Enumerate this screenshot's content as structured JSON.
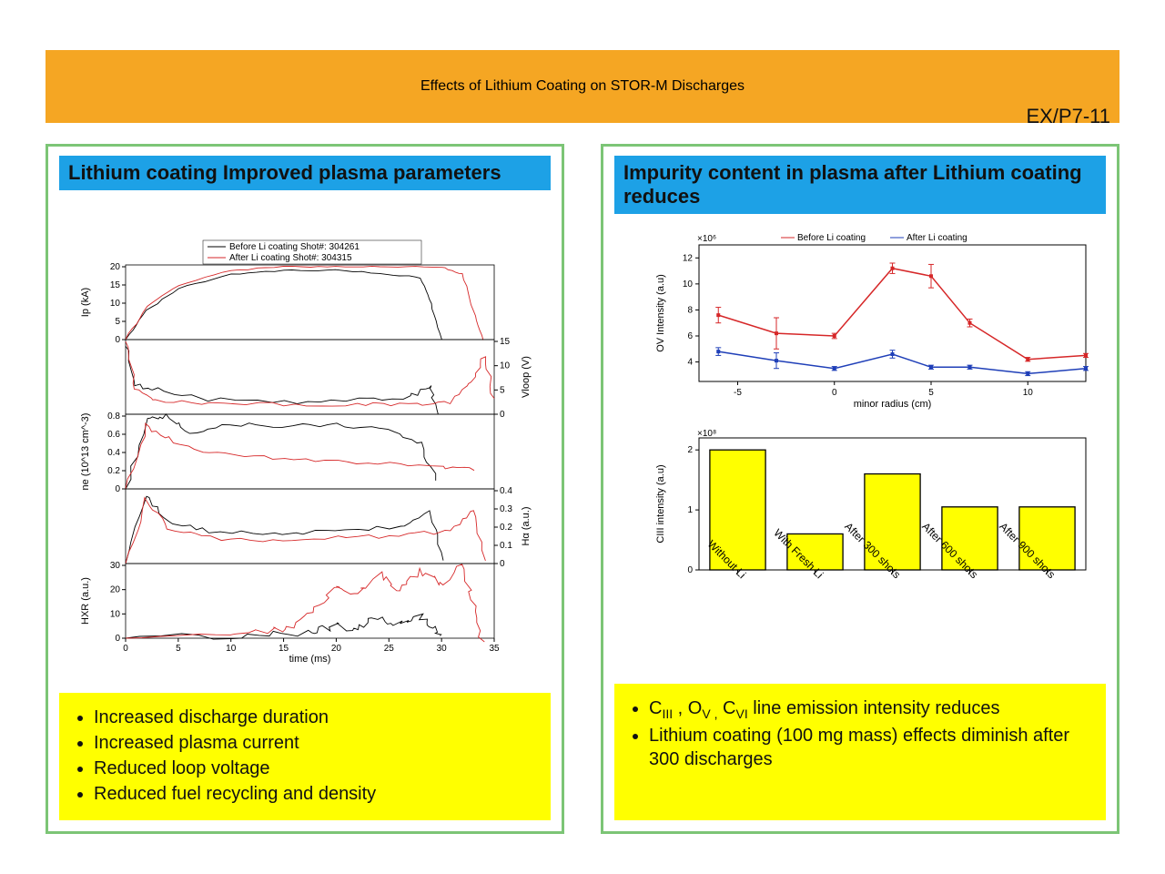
{
  "title": "Effects of Lithium Coating on STOR-M Discharges",
  "code": "EX/P7-11",
  "colors": {
    "title_bg": "#f5a623",
    "panel_border": "#7cc576",
    "subheader_bg": "#1da1e6",
    "highlight_bg": "#ffff00",
    "before_line": "#000000",
    "after_line": "#d62728",
    "ov_before": "#d62728",
    "ov_after": "#1f3fb8",
    "bar_fill": "#ffff00",
    "bar_edge": "#000000"
  },
  "left_panel": {
    "header": "Lithium coating Improved plasma parameters",
    "legend_before": "Before Li coating Shot#: 304261",
    "legend_after": "After Li coating Shot#: 304315",
    "x_axis_label": "time (ms)",
    "x_ticks": [
      0,
      5,
      10,
      15,
      20,
      25,
      30,
      35
    ],
    "subplots": [
      {
        "ylabel": "Ip (kA)",
        "yticks": [
          0,
          5,
          10,
          15,
          20
        ],
        "before": [
          [
            0,
            0
          ],
          [
            2,
            8
          ],
          [
            5,
            14
          ],
          [
            10,
            18
          ],
          [
            15,
            19
          ],
          [
            20,
            19
          ],
          [
            25,
            18
          ],
          [
            28,
            17
          ],
          [
            29,
            10
          ],
          [
            30,
            0
          ]
        ],
        "after": [
          [
            0,
            0
          ],
          [
            2,
            9
          ],
          [
            5,
            15
          ],
          [
            10,
            19
          ],
          [
            15,
            20
          ],
          [
            20,
            20
          ],
          [
            25,
            20
          ],
          [
            30,
            20
          ],
          [
            32,
            18
          ],
          [
            33,
            8
          ],
          [
            34,
            0
          ]
        ]
      },
      {
        "ylabel": "Vloop (V)",
        "side": "right",
        "yticks": [
          0,
          5,
          10,
          15
        ],
        "before": [
          [
            0,
            14
          ],
          [
            1,
            6
          ],
          [
            3,
            5
          ],
          [
            8,
            3
          ],
          [
            15,
            2.5
          ],
          [
            22,
            3
          ],
          [
            27,
            3.5
          ],
          [
            29,
            6
          ],
          [
            29.5,
            0
          ]
        ],
        "after": [
          [
            0,
            15
          ],
          [
            1,
            5
          ],
          [
            3,
            3
          ],
          [
            8,
            2
          ],
          [
            15,
            2
          ],
          [
            22,
            2
          ],
          [
            27,
            2
          ],
          [
            31,
            2.5
          ],
          [
            33,
            7
          ],
          [
            34,
            12
          ],
          [
            35,
            3
          ]
        ]
      },
      {
        "ylabel": "ne (10^13 cm^-3)",
        "yticks": [
          0,
          0.2,
          0.4,
          0.6,
          0.8
        ],
        "before": [
          [
            0,
            0
          ],
          [
            2,
            0.75
          ],
          [
            4,
            0.8
          ],
          [
            6,
            0.6
          ],
          [
            10,
            0.7
          ],
          [
            15,
            0.7
          ],
          [
            20,
            0.7
          ],
          [
            25,
            0.65
          ],
          [
            28,
            0.5
          ],
          [
            29.5,
            0.1
          ]
        ],
        "after": [
          [
            0,
            0
          ],
          [
            2,
            0.7
          ],
          [
            4,
            0.55
          ],
          [
            8,
            0.4
          ],
          [
            12,
            0.35
          ],
          [
            18,
            0.3
          ],
          [
            24,
            0.28
          ],
          [
            30,
            0.25
          ],
          [
            33,
            0.2
          ]
        ]
      },
      {
        "ylabel": "Hα (a.u.)",
        "side": "right",
        "yticks": [
          0,
          0.1,
          0.2,
          0.3,
          0.4
        ],
        "before": [
          [
            0,
            0
          ],
          [
            2,
            0.38
          ],
          [
            4,
            0.22
          ],
          [
            8,
            0.18
          ],
          [
            14,
            0.16
          ],
          [
            20,
            0.18
          ],
          [
            26,
            0.2
          ],
          [
            29,
            0.28
          ],
          [
            30,
            0.02
          ]
        ],
        "after": [
          [
            0,
            0
          ],
          [
            2,
            0.35
          ],
          [
            4,
            0.18
          ],
          [
            8,
            0.14
          ],
          [
            14,
            0.13
          ],
          [
            20,
            0.14
          ],
          [
            26,
            0.15
          ],
          [
            31,
            0.18
          ],
          [
            33,
            0.3
          ],
          [
            34,
            0.02
          ]
        ]
      },
      {
        "ylabel": "HXR (a.u.)",
        "yticks": [
          0,
          10,
          20,
          30
        ],
        "before": [
          [
            0,
            0
          ],
          [
            10,
            1
          ],
          [
            15,
            2
          ],
          [
            18,
            3
          ],
          [
            20,
            5
          ],
          [
            22,
            4
          ],
          [
            24,
            8
          ],
          [
            26,
            6
          ],
          [
            28,
            10
          ],
          [
            29,
            4
          ],
          [
            30,
            0
          ]
        ],
        "after": [
          [
            0,
            0
          ],
          [
            10,
            1
          ],
          [
            14,
            3
          ],
          [
            16,
            6
          ],
          [
            18,
            12
          ],
          [
            20,
            22
          ],
          [
            22,
            18
          ],
          [
            24,
            26
          ],
          [
            26,
            20
          ],
          [
            28,
            28
          ],
          [
            30,
            22
          ],
          [
            32,
            30
          ],
          [
            33,
            12
          ],
          [
            34,
            0
          ]
        ]
      }
    ],
    "bullets": [
      "Increased discharge duration",
      "Increased plasma current",
      "Reduced loop voltage",
      "Reduced fuel recycling and density"
    ]
  },
  "right_panel": {
    "header": "Impurity content in plasma after Lithium coating reduces",
    "ov_chart": {
      "ylabel": "OV Intensity (a.u)",
      "xlabel": "minor radius (cm)",
      "y_exponent": "×10^6",
      "yticks": [
        4,
        6,
        8,
        10,
        12
      ],
      "xticks": [
        -5,
        0,
        5,
        10
      ],
      "xlim": [
        -7,
        13
      ],
      "ylim": [
        2.5,
        13
      ],
      "legend": [
        "Before Li coating",
        "After Li coating"
      ],
      "before": [
        [
          -6,
          7.6
        ],
        [
          -3,
          6.2
        ],
        [
          0,
          6.0
        ],
        [
          3,
          11.2
        ],
        [
          5,
          10.6
        ],
        [
          7,
          7.0
        ],
        [
          10,
          4.2
        ],
        [
          13,
          4.5
        ]
      ],
      "before_err": [
        0.6,
        1.2,
        0.2,
        0.4,
        0.9,
        0.3,
        0.15,
        0.15
      ],
      "after": [
        [
          -6,
          4.8
        ],
        [
          -3,
          4.1
        ],
        [
          0,
          3.5
        ],
        [
          3,
          4.6
        ],
        [
          5,
          3.6
        ],
        [
          7,
          3.6
        ],
        [
          10,
          3.1
        ],
        [
          13,
          3.5
        ]
      ],
      "after_err": [
        0.3,
        0.6,
        0.15,
        0.3,
        0.15,
        0.15,
        0.15,
        0.15
      ]
    },
    "bar_chart": {
      "ylabel": "CIII intensity (a.u)",
      "y_exponent": "×10^8",
      "yticks": [
        0,
        1,
        2
      ],
      "ylim": [
        0,
        2.2
      ],
      "categories": [
        "Without Li",
        "With Fresh Li",
        "After 300 shots",
        "After 600 shots",
        "After 900 shots"
      ],
      "values": [
        2.0,
        0.6,
        1.6,
        1.05,
        1.05
      ]
    },
    "bullets_html": [
      "C<sub>III</sub> , O<sub>V ,</sub> C<sub>VI</sub> line emission intensity reduces",
      "Lithium coating (100 mg mass) effects diminish after 300 discharges"
    ]
  }
}
